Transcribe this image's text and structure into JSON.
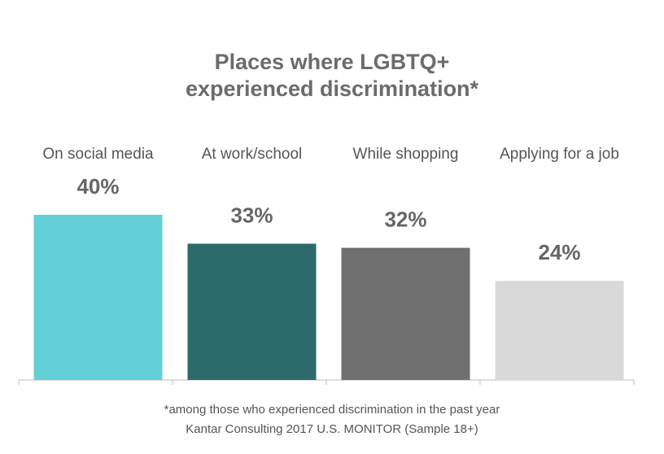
{
  "chart_data": {
    "type": "bar",
    "title": [
      "Places where LGBTQ+",
      "experienced discrimination*"
    ],
    "categories": [
      "On social media",
      "At work/school",
      "While shopping",
      "Applying for a job"
    ],
    "values": [
      40,
      33,
      32,
      24
    ],
    "value_labels": [
      "40%",
      "33%",
      "32%",
      "24%"
    ],
    "colors": [
      "#62d0d6",
      "#2d6a6b",
      "#6f6f6f",
      "#d9d9d9"
    ],
    "footnote": "*among those who experienced discrimination in the past year",
    "source": "Kantar Consulting 2017 U.S. MONITOR (Sample 18+)"
  }
}
